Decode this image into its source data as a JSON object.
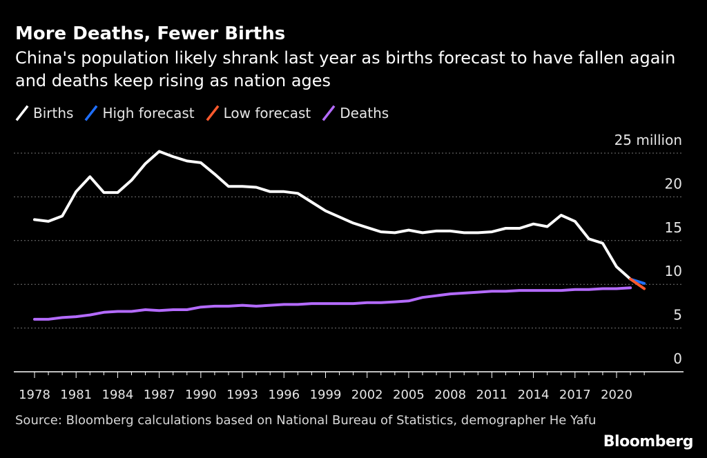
{
  "title": "More Deaths, Fewer Births",
  "subtitle": "China's population likely shrank last year as births forecast to have fallen again and deaths keep rising as nation ages",
  "source": "Source: Bloomberg calculations based on National Bureau of Statistics, demographer He Yafu",
  "brand": "Bloomberg",
  "legend": [
    {
      "label": "Births",
      "color": "#ffffff"
    },
    {
      "label": "High forecast",
      "color": "#1f6fff"
    },
    {
      "label": "Low forecast",
      "color": "#ff5a2d"
    },
    {
      "label": "Deaths",
      "color": "#b46bff"
    }
  ],
  "chart_data": {
    "type": "line",
    "title": "More Deaths, Fewer Births",
    "ylabel_unit": "million",
    "ylim": [
      0,
      25
    ],
    "yticks": [
      0,
      5,
      10,
      15,
      20,
      25
    ],
    "ytick_labels": [
      "0",
      "5",
      "10",
      "15",
      "20",
      "25 million"
    ],
    "xlim": [
      1978,
      2022
    ],
    "xticks": [
      1978,
      1981,
      1984,
      1987,
      1990,
      1993,
      1996,
      1999,
      2002,
      2005,
      2008,
      2011,
      2014,
      2017,
      2020
    ],
    "xtick_labels": [
      "1978",
      "1981",
      "1984",
      "1987",
      "1990",
      "1993",
      "1996",
      "1999",
      "2002",
      "2005",
      "2008",
      "2011",
      "2014",
      "2017",
      "2020"
    ],
    "grid": true,
    "series": [
      {
        "name": "Births",
        "color": "#ffffff",
        "x": [
          1978,
          1979,
          1980,
          1981,
          1982,
          1983,
          1984,
          1985,
          1986,
          1987,
          1988,
          1989,
          1990,
          1991,
          1992,
          1993,
          1994,
          1995,
          1996,
          1997,
          1998,
          1999,
          2000,
          2001,
          2002,
          2003,
          2004,
          2005,
          2006,
          2007,
          2008,
          2009,
          2010,
          2011,
          2012,
          2013,
          2014,
          2015,
          2016,
          2017,
          2018,
          2019,
          2020,
          2021
        ],
        "y": [
          17.4,
          17.2,
          17.8,
          20.6,
          22.3,
          20.5,
          20.5,
          21.9,
          23.8,
          25.2,
          24.6,
          24.1,
          23.9,
          22.6,
          21.2,
          21.2,
          21.1,
          20.6,
          20.6,
          20.4,
          19.4,
          18.4,
          17.7,
          17.0,
          16.5,
          16.0,
          15.9,
          16.2,
          15.9,
          16.1,
          16.1,
          15.9,
          15.9,
          16.0,
          16.4,
          16.4,
          16.9,
          16.6,
          17.9,
          17.2,
          15.2,
          14.7,
          12.0,
          10.6
        ]
      },
      {
        "name": "High forecast",
        "color": "#1f6fff",
        "x": [
          2021,
          2022
        ],
        "y": [
          10.6,
          10.1
        ]
      },
      {
        "name": "Low forecast",
        "color": "#ff5a2d",
        "x": [
          2021,
          2022
        ],
        "y": [
          10.6,
          9.5
        ]
      },
      {
        "name": "Deaths",
        "color": "#b46bff",
        "x": [
          1978,
          1979,
          1980,
          1981,
          1982,
          1983,
          1984,
          1985,
          1986,
          1987,
          1988,
          1989,
          1990,
          1991,
          1992,
          1993,
          1994,
          1995,
          1996,
          1997,
          1998,
          1999,
          2000,
          2001,
          2002,
          2003,
          2004,
          2005,
          2006,
          2007,
          2008,
          2009,
          2010,
          2011,
          2012,
          2013,
          2014,
          2015,
          2016,
          2017,
          2018,
          2019,
          2020,
          2021
        ],
        "y": [
          6.0,
          6.0,
          6.2,
          6.3,
          6.5,
          6.8,
          6.9,
          6.9,
          7.1,
          7.0,
          7.1,
          7.1,
          7.4,
          7.5,
          7.5,
          7.6,
          7.5,
          7.6,
          7.7,
          7.7,
          7.8,
          7.8,
          7.8,
          7.8,
          7.9,
          7.9,
          8.0,
          8.1,
          8.5,
          8.7,
          8.9,
          9.0,
          9.1,
          9.2,
          9.2,
          9.3,
          9.3,
          9.3,
          9.3,
          9.4,
          9.4,
          9.5,
          9.5,
          9.6
        ]
      }
    ]
  }
}
